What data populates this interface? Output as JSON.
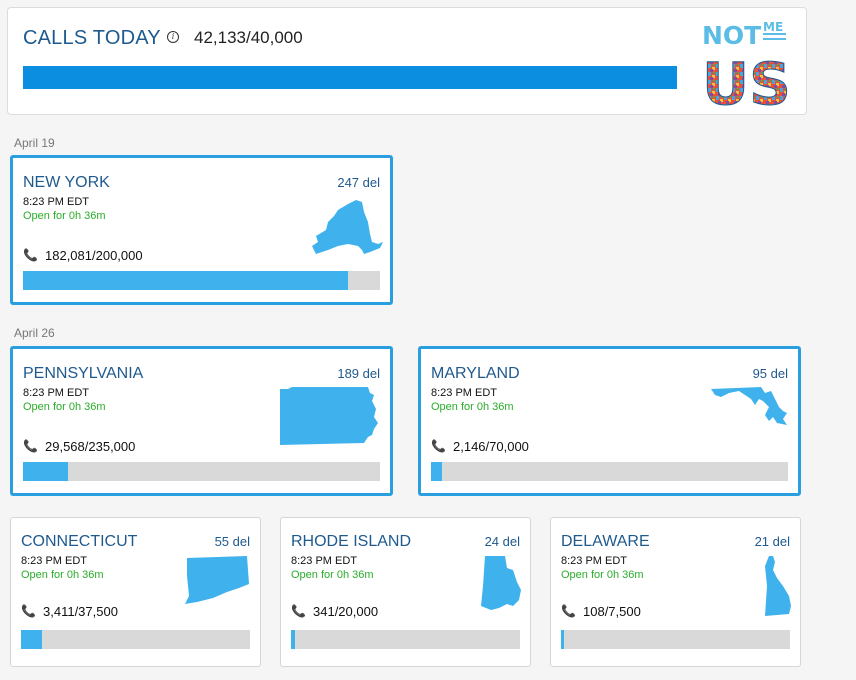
{
  "header": {
    "title": "CALLS TODAY",
    "info_icon": "i",
    "count": "42,133/40,000",
    "progress": 1.0,
    "logo": {
      "top": "NOT",
      "small": "ME",
      "bottom": "US"
    }
  },
  "groups": [
    {
      "date": "April 19"
    },
    {
      "date": "April 26"
    }
  ],
  "states": [
    {
      "name": "NEW YORK",
      "delegates": "247 del",
      "time": "8:23 PM EDT",
      "open": "Open for 0h 36m",
      "calls": "182,081/200,000",
      "progress": 0.91,
      "phone_icon": "phone-icon"
    },
    {
      "name": "PENNSYLVANIA",
      "delegates": "189 del",
      "time": "8:23 PM EDT",
      "open": "Open for 0h 36m",
      "calls": "29,568/235,000",
      "progress": 0.126,
      "phone_icon": "phone-icon"
    },
    {
      "name": "MARYLAND",
      "delegates": "95 del",
      "time": "8:23 PM EDT",
      "open": "Open for 0h 36m",
      "calls": "2,146/70,000",
      "progress": 0.031,
      "phone_icon": "phone-icon"
    },
    {
      "name": "CONNECTICUT",
      "delegates": "55 del",
      "time": "8:23 PM EDT",
      "open": "Open for 0h 36m",
      "calls": "3,411/37,500",
      "progress": 0.091,
      "phone_icon": "phone-icon"
    },
    {
      "name": "RHODE ISLAND",
      "delegates": "24 del",
      "time": "8:23 PM EDT",
      "open": "Open for 0h 36m",
      "calls": "341/20,000",
      "progress": 0.017,
      "phone_icon": "phone-icon"
    },
    {
      "name": "DELAWARE",
      "delegates": "21 del",
      "time": "8:23 PM EDT",
      "open": "Open for 0h 36m",
      "calls": "108/7,500",
      "progress": 0.014,
      "phone_icon": "phone-icon"
    }
  ],
  "colors": {
    "accent": "#2a9fe0",
    "title": "#1e5a8e",
    "open_text": "#2aad2a",
    "bar_fill": "#3fb2ee",
    "header_bar": "#0b8de0"
  }
}
